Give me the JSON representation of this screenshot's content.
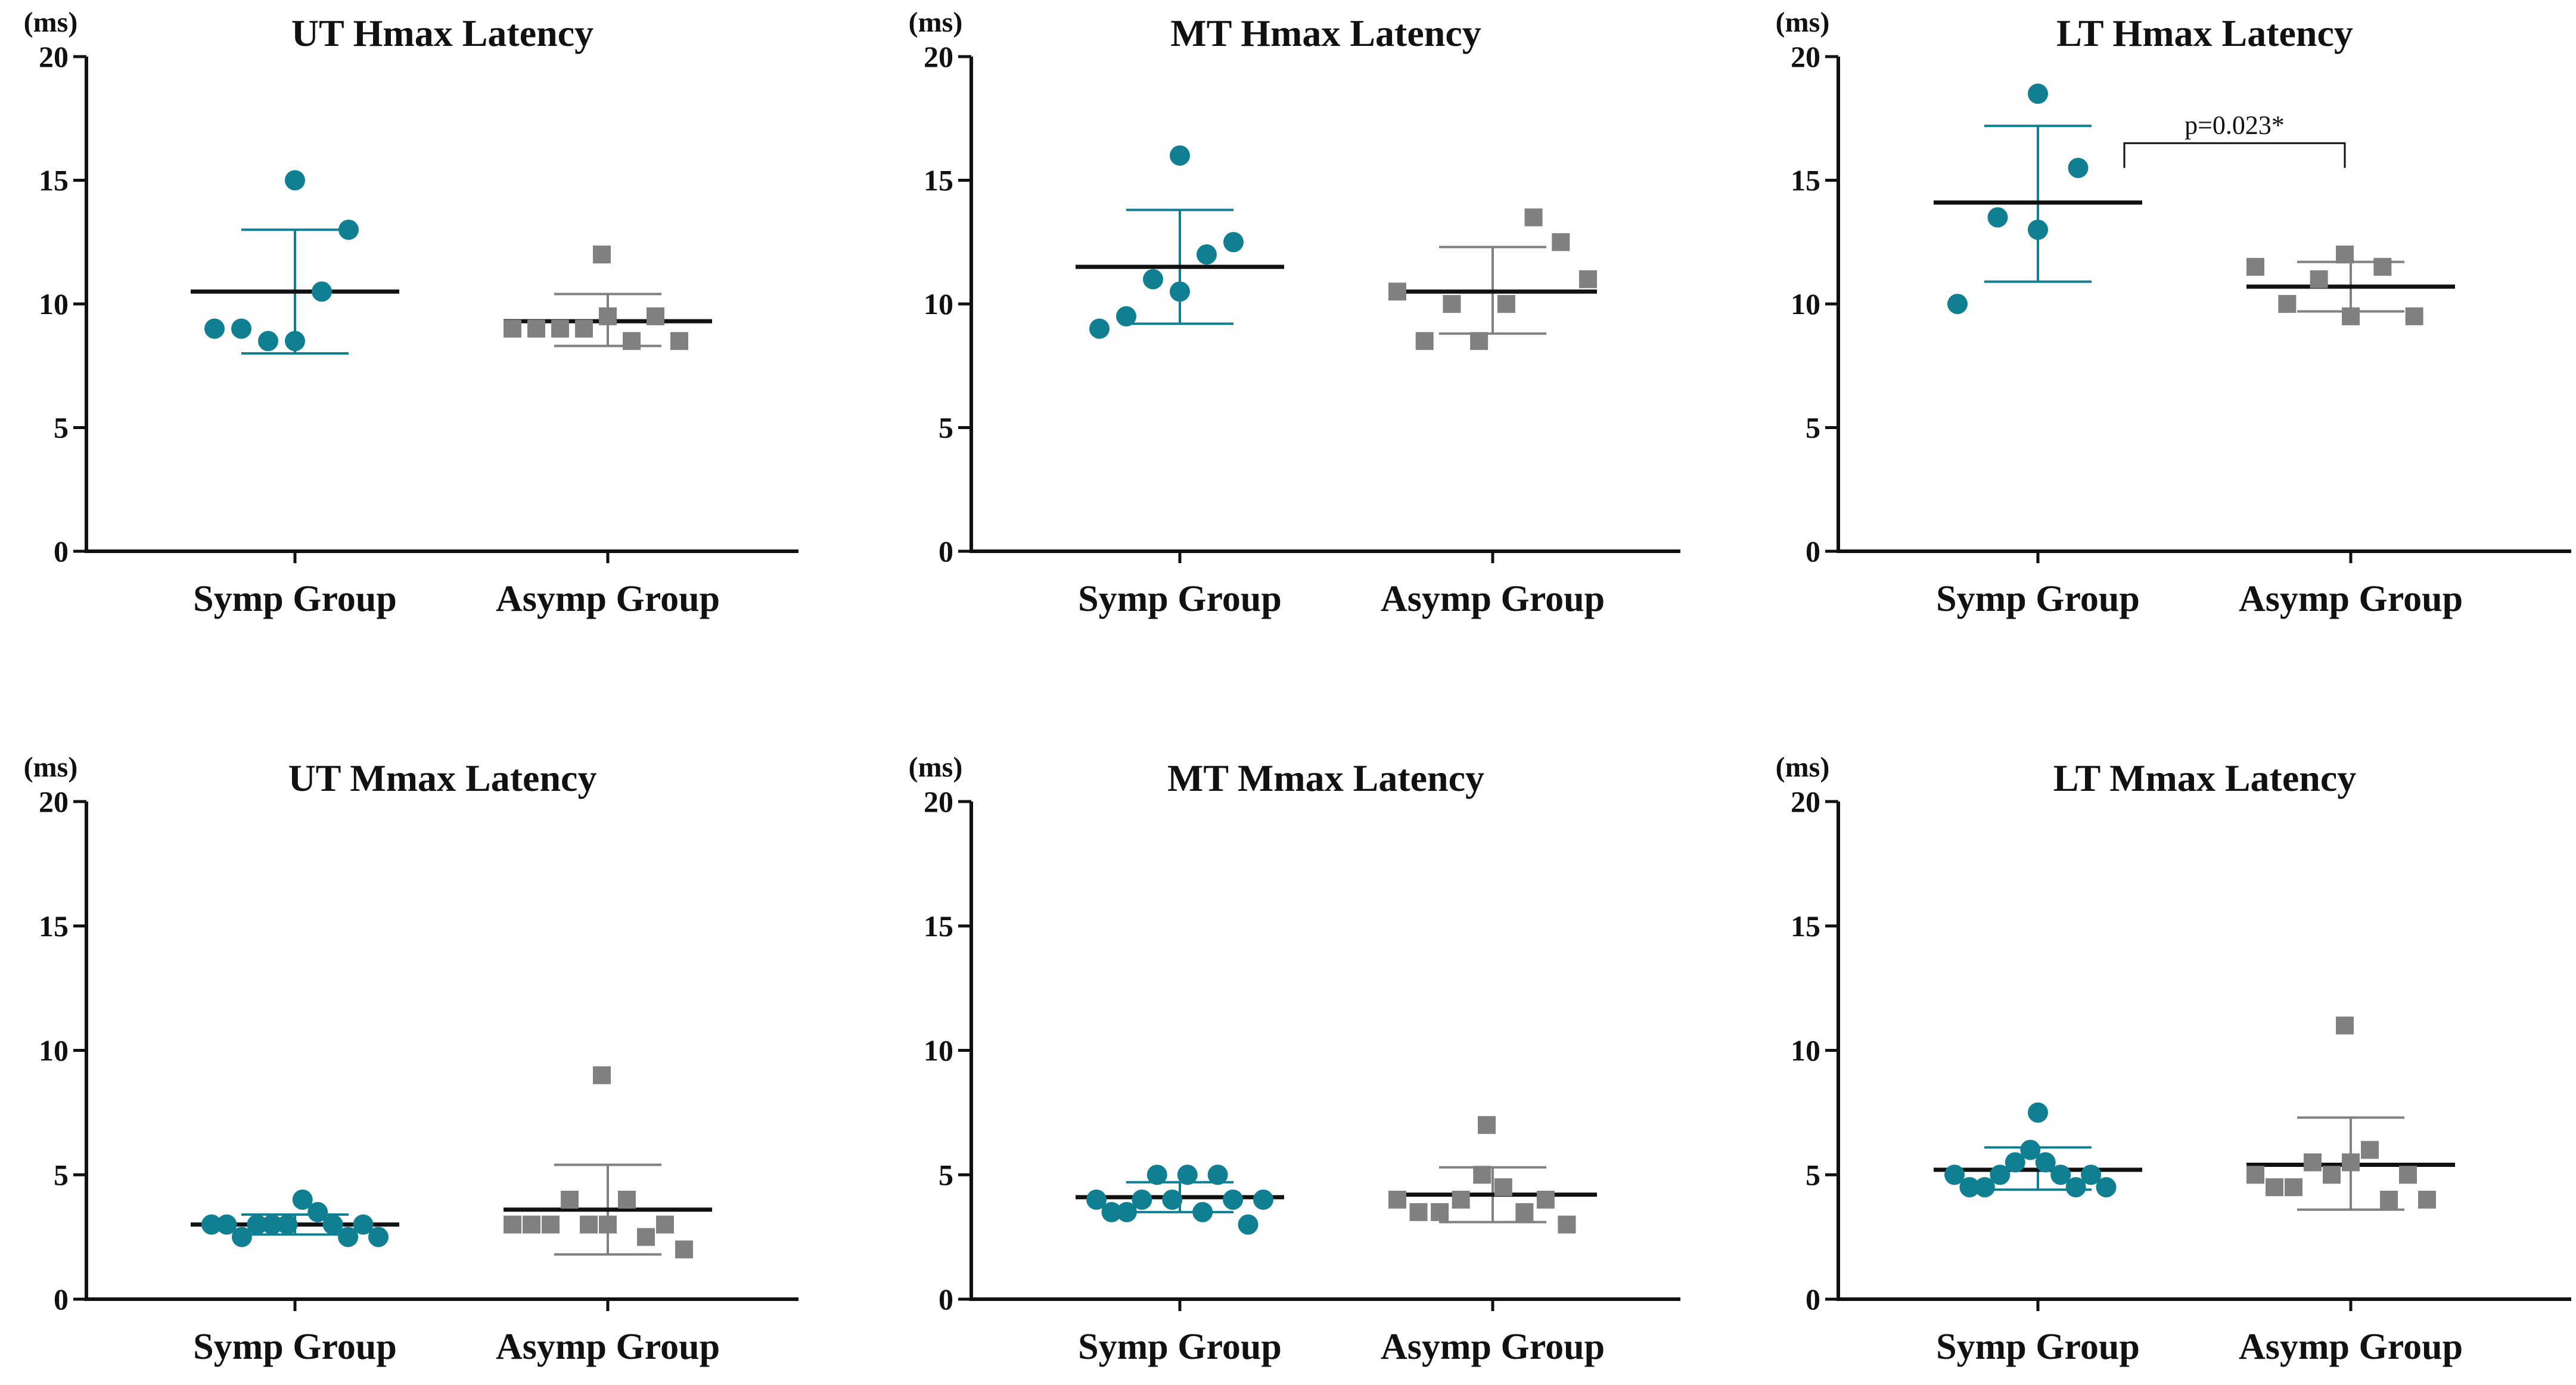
{
  "colors": {
    "symp": "#0f7f91",
    "asymp": "#808080",
    "axis": "#111111",
    "mean_line": "#111111"
  },
  "chart_data": [
    {
      "type": "scatter",
      "title": "UT Hmax Latency",
      "ylabel": "(ms)",
      "ylim": [
        0,
        20
      ],
      "yticks": [
        "0",
        "5",
        "10",
        "15",
        "20"
      ],
      "categories": [
        "Symp Group",
        "Asymp Group"
      ],
      "series": [
        {
          "name": "Symp Group",
          "marker": "circle",
          "values": [
            9.0,
            9.0,
            8.5,
            8.5,
            10.5,
            13.0,
            15.0
          ],
          "mean": 10.5,
          "sd_low": 8.0,
          "sd_high": 13.0
        },
        {
          "name": "Asymp Group",
          "marker": "square",
          "values": [
            9.0,
            9.0,
            9.0,
            9.0,
            9.5,
            8.5,
            9.5,
            8.5,
            12.0
          ],
          "mean": 9.3,
          "sd_low": 8.3,
          "sd_high": 10.4
        }
      ],
      "annotation": null
    },
    {
      "type": "scatter",
      "title": "MT Hmax Latency",
      "ylabel": "(ms)",
      "ylim": [
        0,
        20
      ],
      "yticks": [
        "0",
        "5",
        "10",
        "15",
        "20"
      ],
      "categories": [
        "Symp Group",
        "Asymp Group"
      ],
      "series": [
        {
          "name": "Symp Group",
          "marker": "circle",
          "values": [
            9.0,
            9.5,
            11.0,
            10.5,
            12.0,
            12.5,
            16.0
          ],
          "mean": 11.5,
          "sd_low": 9.2,
          "sd_high": 13.8
        },
        {
          "name": "Asymp Group",
          "marker": "square",
          "values": [
            10.5,
            8.5,
            10.0,
            8.5,
            10.0,
            13.5,
            12.5,
            11.0
          ],
          "mean": 10.5,
          "sd_low": 8.8,
          "sd_high": 12.3
        }
      ],
      "annotation": null
    },
    {
      "type": "scatter",
      "title": "LT Hmax Latency",
      "ylabel": "(ms)",
      "ylim": [
        0,
        20
      ],
      "yticks": [
        "0",
        "5",
        "10",
        "15",
        "20"
      ],
      "categories": [
        "Symp Group",
        "Asymp Group"
      ],
      "series": [
        {
          "name": "Symp Group",
          "marker": "circle",
          "values": [
            10.0,
            13.5,
            13.0,
            15.5,
            18.5
          ],
          "mean": 14.1,
          "sd_low": 10.9,
          "sd_high": 17.2
        },
        {
          "name": "Asymp Group",
          "marker": "square",
          "values": [
            11.5,
            10.0,
            11.0,
            9.5,
            11.5,
            9.5,
            12.0
          ],
          "mean": 10.7,
          "sd_low": 9.7,
          "sd_high": 11.7
        }
      ],
      "annotation": {
        "text": "p=0.023*",
        "y": 16.5
      }
    },
    {
      "type": "scatter",
      "title": "UT Mmax Latency",
      "ylabel": "(ms)",
      "ylim": [
        0,
        20
      ],
      "yticks": [
        "0",
        "5",
        "10",
        "15",
        "20"
      ],
      "categories": [
        "Symp Group",
        "Asymp Group"
      ],
      "series": [
        {
          "name": "Symp Group",
          "marker": "circle",
          "values": [
            3.0,
            3.0,
            2.5,
            3.0,
            3.0,
            3.0,
            4.0,
            3.5,
            3.0,
            2.5,
            3.0,
            2.5
          ],
          "mean": 3.0,
          "sd_low": 2.6,
          "sd_high": 3.4
        },
        {
          "name": "Asymp Group",
          "marker": "square",
          "values": [
            3.0,
            3.0,
            3.0,
            4.0,
            3.0,
            3.0,
            4.0,
            2.5,
            3.0,
            2.0,
            9.0
          ],
          "mean": 3.6,
          "sd_low": 1.8,
          "sd_high": 5.4
        }
      ],
      "annotation": null
    },
    {
      "type": "scatter",
      "title": "MT Mmax Latency",
      "ylabel": "(ms)",
      "ylim": [
        0,
        20
      ],
      "yticks": [
        "0",
        "5",
        "10",
        "15",
        "20"
      ],
      "categories": [
        "Symp Group",
        "Asymp Group"
      ],
      "series": [
        {
          "name": "Symp Group",
          "marker": "circle",
          "values": [
            4.0,
            3.5,
            3.5,
            4.0,
            5.0,
            4.0,
            5.0,
            3.5,
            5.0,
            4.0,
            3.0,
            4.0
          ],
          "mean": 4.1,
          "sd_low": 3.5,
          "sd_high": 4.7
        },
        {
          "name": "Asymp Group",
          "marker": "square",
          "values": [
            4.0,
            3.5,
            3.5,
            4.0,
            5.0,
            4.5,
            3.5,
            4.0,
            3.0,
            7.0
          ],
          "mean": 4.2,
          "sd_low": 3.1,
          "sd_high": 5.3
        }
      ],
      "annotation": null
    },
    {
      "type": "scatter",
      "title": "LT Mmax Latency",
      "ylabel": "(ms)",
      "ylim": [
        0,
        20
      ],
      "yticks": [
        "0",
        "5",
        "10",
        "15",
        "20"
      ],
      "categories": [
        "Symp Group",
        "Asymp Group"
      ],
      "series": [
        {
          "name": "Symp Group",
          "marker": "circle",
          "values": [
            5.0,
            4.5,
            4.5,
            5.0,
            5.5,
            6.0,
            5.5,
            5.0,
            4.5,
            5.0,
            4.5,
            7.5
          ],
          "mean": 5.2,
          "sd_low": 4.4,
          "sd_high": 6.1
        },
        {
          "name": "Asymp Group",
          "marker": "square",
          "values": [
            5.0,
            4.5,
            4.5,
            5.5,
            5.0,
            5.5,
            6.0,
            4.0,
            5.0,
            4.0,
            11.0
          ],
          "mean": 5.4,
          "sd_low": 3.6,
          "sd_high": 7.3
        }
      ],
      "annotation": null
    }
  ]
}
